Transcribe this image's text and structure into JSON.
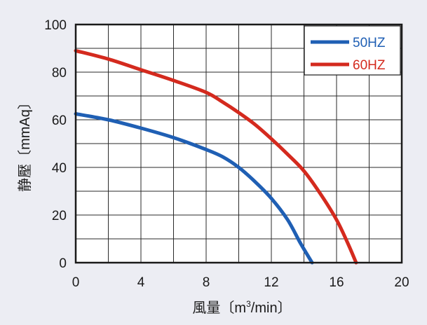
{
  "chart_data": {
    "type": "line",
    "xlabel_main": "風量〔m",
    "xlabel_sup": "3",
    "xlabel_tail": "/min〕",
    "ylabel": "静壓〔mmAq〕",
    "xlim": [
      0,
      20
    ],
    "ylim": [
      0,
      100
    ],
    "x_ticks": [
      "0",
      "4",
      "8",
      "12",
      "16",
      "20"
    ],
    "x_tick_values": [
      0,
      4,
      8,
      12,
      16,
      20
    ],
    "y_ticks": [
      "0",
      "20",
      "40",
      "60",
      "80",
      "100"
    ],
    "y_tick_values": [
      0,
      20,
      40,
      60,
      80,
      100
    ],
    "x_grid": [
      0,
      2,
      4,
      6,
      8,
      10,
      12,
      14,
      16,
      18,
      20
    ],
    "y_grid": [
      0,
      10,
      20,
      30,
      40,
      50,
      60,
      70,
      80,
      90,
      100
    ],
    "grid": true,
    "legend_position": "top-right",
    "series": [
      {
        "name": "50HZ",
        "color": "#1f5fb4",
        "points": [
          [
            0,
            62.5
          ],
          [
            2,
            60
          ],
          [
            4,
            56.5
          ],
          [
            6,
            52.5
          ],
          [
            8,
            47.5
          ],
          [
            9,
            44.5
          ],
          [
            10,
            40
          ],
          [
            11,
            34
          ],
          [
            12,
            27
          ],
          [
            13,
            18
          ],
          [
            13.8,
            8
          ],
          [
            14.5,
            0
          ]
        ]
      },
      {
        "name": "60HZ",
        "color": "#d42a1e",
        "points": [
          [
            0,
            89
          ],
          [
            2,
            85.5
          ],
          [
            4,
            81
          ],
          [
            6,
            76.5
          ],
          [
            8,
            71.5
          ],
          [
            9,
            67.5
          ],
          [
            10,
            63
          ],
          [
            11,
            58
          ],
          [
            12,
            52
          ],
          [
            13,
            45.5
          ],
          [
            14,
            38.5
          ],
          [
            15,
            29
          ],
          [
            16,
            18
          ],
          [
            16.7,
            8
          ],
          [
            17.2,
            0
          ]
        ]
      }
    ]
  }
}
